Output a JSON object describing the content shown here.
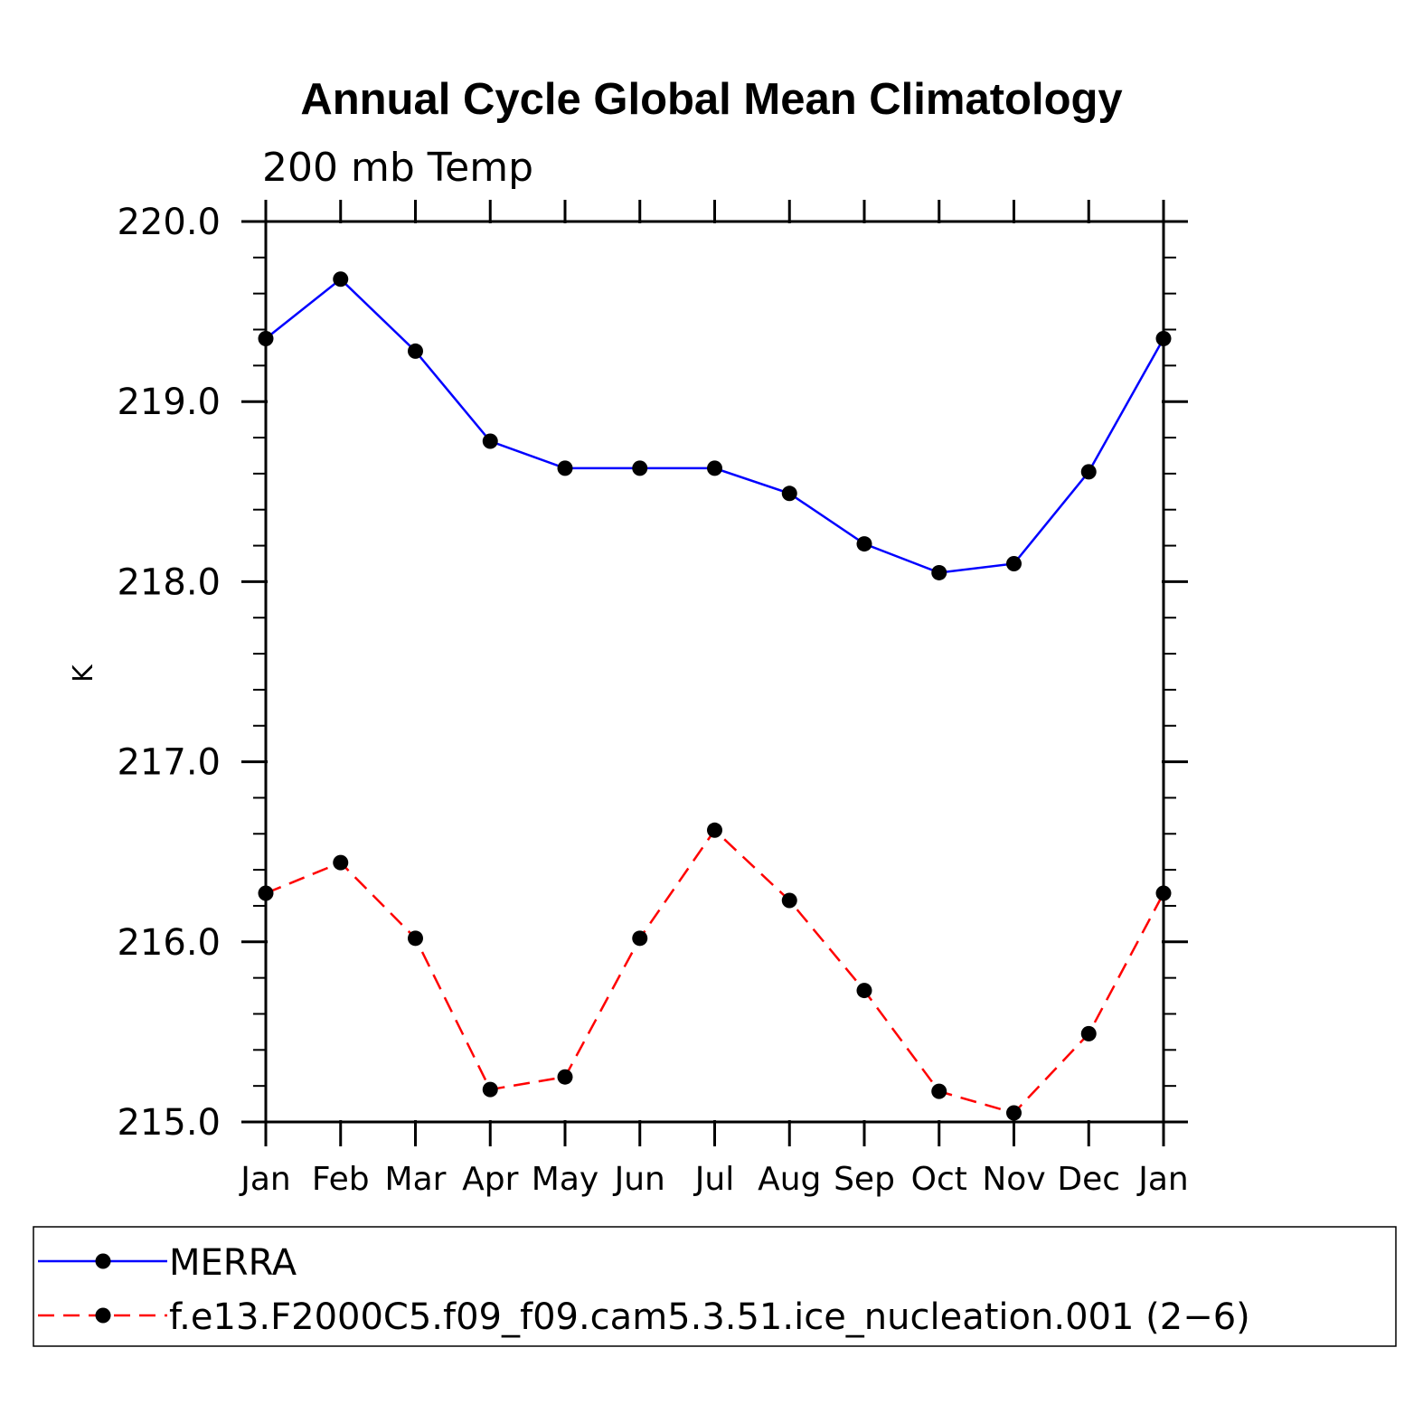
{
  "chart_data": {
    "type": "line",
    "title": "Annual Cycle Global Mean Climatology",
    "subtitle": "200 mb Temp",
    "ylabel": "K",
    "xlabel": "",
    "categories": [
      "Jan",
      "Feb",
      "Mar",
      "Apr",
      "May",
      "Jun",
      "Jul",
      "Aug",
      "Sep",
      "Oct",
      "Nov",
      "Dec",
      "Jan"
    ],
    "ylim": [
      215.0,
      220.0
    ],
    "yticks": [
      "215.0",
      "216.0",
      "217.0",
      "218.0",
      "219.0",
      "220.0"
    ],
    "grid": false,
    "legend_position": "bottom",
    "series": [
      {
        "name": "MERRA",
        "color": "#0000ff",
        "line_style": "solid",
        "marker": "filled-circle",
        "values": [
          219.35,
          219.68,
          219.28,
          218.78,
          218.63,
          218.63,
          218.63,
          218.49,
          218.21,
          218.05,
          218.1,
          218.61,
          219.35
        ]
      },
      {
        "name": "f.e13.F2000C5.f09_f09.cam5.3.51.ice_nucleation.001 (2−6)",
        "color": "#ff0000",
        "line_style": "dashed",
        "marker": "filled-circle",
        "values": [
          216.27,
          216.44,
          216.02,
          215.18,
          215.25,
          216.02,
          216.62,
          216.23,
          215.73,
          215.17,
          215.05,
          215.49,
          216.27
        ]
      }
    ]
  }
}
